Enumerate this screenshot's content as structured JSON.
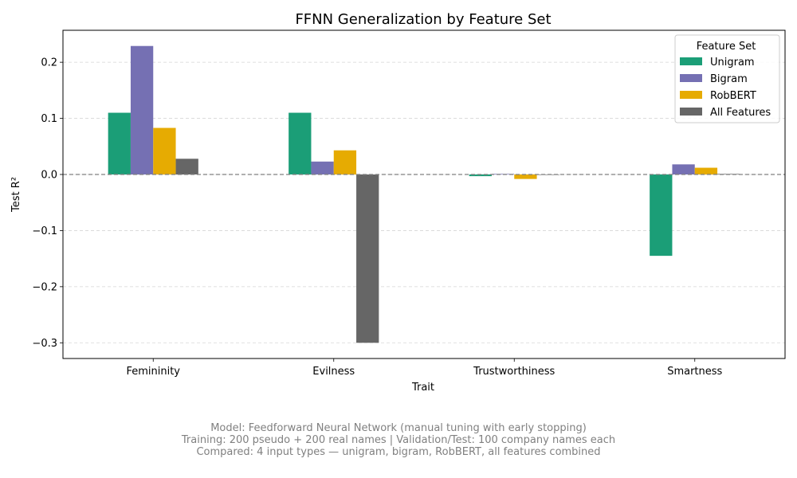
{
  "chart_data": {
    "type": "bar",
    "title": "FFNN Generalization by Feature Set",
    "xlabel": "Trait",
    "ylabel": "Test R²",
    "categories": [
      "Femininity",
      "Evilness",
      "Trustworthiness",
      "Smartness"
    ],
    "series": [
      {
        "name": "Unigram",
        "values": [
          0.11,
          0.11,
          -0.003,
          -0.145
        ],
        "color": "#1b9e77"
      },
      {
        "name": "Bigram",
        "values": [
          0.229,
          0.023,
          0.001,
          0.018
        ],
        "color": "#7570b3"
      },
      {
        "name": "RobBERT",
        "values": [
          0.083,
          0.043,
          -0.008,
          0.012
        ],
        "color": "#e6ab02"
      },
      {
        "name": "All Features",
        "values": [
          0.028,
          -0.3,
          0.0,
          0.001
        ],
        "color": "#666666"
      }
    ],
    "ylim": [
      -0.328,
      0.257
    ],
    "yticks": [
      -0.3,
      -0.2,
      -0.1,
      0.0,
      0.1,
      0.2
    ],
    "ytick_labels": [
      "−0.3",
      "−0.2",
      "−0.1",
      "0.0",
      "0.1",
      "0.2"
    ],
    "grid": "y dashed",
    "zero_line": "dashed",
    "legend": {
      "title": "Feature Set",
      "placement": "top-right"
    }
  },
  "caption": {
    "line1": "Model: Feedforward Neural Network (manual tuning with early stopping)",
    "line2": "Training: 200 pseudo + 200 real names | Validation/Test: 100 company names each",
    "line3": "Compared: 4 input types — unigram, bigram, RobBERT, all features combined"
  }
}
